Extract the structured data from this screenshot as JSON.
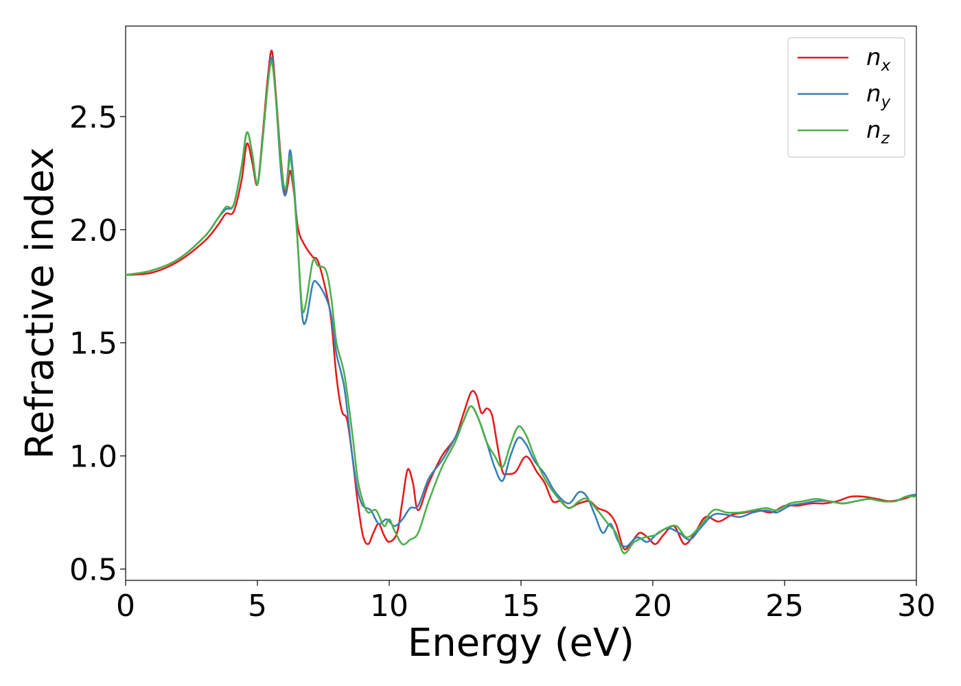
{
  "chart_data": {
    "type": "line",
    "xlabel": "Energy (eV)",
    "ylabel": "Refractive index",
    "xlim": [
      0,
      30
    ],
    "ylim": [
      0.45,
      2.9
    ],
    "xticks": [
      0,
      5,
      10,
      15,
      20,
      25,
      30
    ],
    "yticks": [
      0.5,
      1.0,
      1.5,
      2.0,
      2.5
    ],
    "xtick_labels": [
      "0",
      "5",
      "10",
      "15",
      "20",
      "25",
      "30"
    ],
    "ytick_labels": [
      "0.5",
      "1.0",
      "1.5",
      "2.0",
      "2.5"
    ],
    "grid": false,
    "legend_position": "top-right",
    "series": [
      {
        "name": "n_x",
        "legend_base": "n",
        "legend_sub": "x",
        "color": "#e41a1c",
        "points": [
          [
            0,
            1.8
          ],
          [
            1,
            1.81
          ],
          [
            2,
            1.86
          ],
          [
            3,
            1.95
          ],
          [
            3.5,
            2.02
          ],
          [
            3.8,
            2.07
          ],
          [
            4.1,
            2.08
          ],
          [
            4.4,
            2.22
          ],
          [
            4.6,
            2.38
          ],
          [
            4.8,
            2.3
          ],
          [
            5.0,
            2.2
          ],
          [
            5.2,
            2.42
          ],
          [
            5.4,
            2.68
          ],
          [
            5.55,
            2.79
          ],
          [
            5.7,
            2.6
          ],
          [
            5.9,
            2.3
          ],
          [
            6.05,
            2.16
          ],
          [
            6.15,
            2.2
          ],
          [
            6.25,
            2.26
          ],
          [
            6.4,
            2.15
          ],
          [
            6.55,
            2.0
          ],
          [
            6.8,
            1.93
          ],
          [
            7.1,
            1.88
          ],
          [
            7.3,
            1.86
          ],
          [
            7.6,
            1.73
          ],
          [
            7.8,
            1.6
          ],
          [
            8.0,
            1.35
          ],
          [
            8.2,
            1.2
          ],
          [
            8.4,
            1.16
          ],
          [
            8.6,
            1.0
          ],
          [
            8.8,
            0.8
          ],
          [
            9.0,
            0.65
          ],
          [
            9.2,
            0.61
          ],
          [
            9.4,
            0.66
          ],
          [
            9.6,
            0.7
          ],
          [
            9.8,
            0.65
          ],
          [
            10.0,
            0.62
          ],
          [
            10.3,
            0.66
          ],
          [
            10.5,
            0.8
          ],
          [
            10.7,
            0.94
          ],
          [
            10.9,
            0.88
          ],
          [
            11.1,
            0.76
          ],
          [
            11.5,
            0.88
          ],
          [
            12.0,
            1.0
          ],
          [
            12.5,
            1.08
          ],
          [
            12.8,
            1.18
          ],
          [
            13.1,
            1.28
          ],
          [
            13.3,
            1.27
          ],
          [
            13.5,
            1.19
          ],
          [
            13.7,
            1.21
          ],
          [
            13.9,
            1.18
          ],
          [
            14.1,
            1.05
          ],
          [
            14.3,
            0.93
          ],
          [
            14.5,
            0.92
          ],
          [
            14.8,
            0.93
          ],
          [
            15.1,
            0.99
          ],
          [
            15.3,
            0.99
          ],
          [
            15.6,
            0.93
          ],
          [
            15.9,
            0.88
          ],
          [
            16.2,
            0.8
          ],
          [
            16.5,
            0.8
          ],
          [
            16.8,
            0.77
          ],
          [
            17.2,
            0.79
          ],
          [
            17.6,
            0.8
          ],
          [
            17.9,
            0.77
          ],
          [
            18.3,
            0.75
          ],
          [
            18.6,
            0.7
          ],
          [
            18.9,
            0.59
          ],
          [
            19.2,
            0.62
          ],
          [
            19.5,
            0.66
          ],
          [
            19.8,
            0.64
          ],
          [
            20.1,
            0.61
          ],
          [
            20.4,
            0.65
          ],
          [
            20.8,
            0.69
          ],
          [
            21.2,
            0.61
          ],
          [
            21.6,
            0.66
          ],
          [
            22.0,
            0.73
          ],
          [
            22.5,
            0.71
          ],
          [
            23.0,
            0.74
          ],
          [
            23.5,
            0.75
          ],
          [
            24.0,
            0.76
          ],
          [
            24.5,
            0.75
          ],
          [
            25.0,
            0.78
          ],
          [
            25.5,
            0.78
          ],
          [
            26.0,
            0.79
          ],
          [
            26.5,
            0.79
          ],
          [
            27.0,
            0.8
          ],
          [
            27.5,
            0.82
          ],
          [
            28.0,
            0.82
          ],
          [
            28.5,
            0.81
          ],
          [
            29.0,
            0.8
          ],
          [
            29.5,
            0.81
          ],
          [
            30,
            0.83
          ]
        ]
      },
      {
        "name": "n_y",
        "legend_base": "n",
        "legend_sub": "y",
        "color": "#377eb8",
        "points": [
          [
            0,
            1.8
          ],
          [
            1,
            1.82
          ],
          [
            2,
            1.87
          ],
          [
            3,
            1.97
          ],
          [
            3.5,
            2.05
          ],
          [
            3.8,
            2.09
          ],
          [
            4.1,
            2.11
          ],
          [
            4.4,
            2.28
          ],
          [
            4.6,
            2.43
          ],
          [
            4.8,
            2.34
          ],
          [
            5.0,
            2.2
          ],
          [
            5.2,
            2.4
          ],
          [
            5.4,
            2.65
          ],
          [
            5.55,
            2.76
          ],
          [
            5.7,
            2.58
          ],
          [
            5.9,
            2.25
          ],
          [
            6.05,
            2.15
          ],
          [
            6.15,
            2.25
          ],
          [
            6.25,
            2.35
          ],
          [
            6.4,
            2.18
          ],
          [
            6.55,
            1.9
          ],
          [
            6.7,
            1.62
          ],
          [
            6.85,
            1.6
          ],
          [
            7.1,
            1.76
          ],
          [
            7.3,
            1.76
          ],
          [
            7.6,
            1.7
          ],
          [
            7.8,
            1.62
          ],
          [
            8.0,
            1.45
          ],
          [
            8.3,
            1.3
          ],
          [
            8.6,
            1.0
          ],
          [
            8.8,
            0.85
          ],
          [
            9.0,
            0.78
          ],
          [
            9.3,
            0.76
          ],
          [
            9.6,
            0.7
          ],
          [
            9.9,
            0.72
          ],
          [
            10.2,
            0.69
          ],
          [
            10.5,
            0.72
          ],
          [
            10.8,
            0.77
          ],
          [
            11.1,
            0.78
          ],
          [
            11.5,
            0.9
          ],
          [
            12.0,
            0.98
          ],
          [
            12.5,
            1.08
          ],
          [
            12.8,
            1.15
          ],
          [
            13.1,
            1.22
          ],
          [
            13.4,
            1.16
          ],
          [
            13.7,
            1.06
          ],
          [
            14.0,
            0.95
          ],
          [
            14.3,
            0.89
          ],
          [
            14.6,
            1.0
          ],
          [
            14.9,
            1.08
          ],
          [
            15.2,
            1.05
          ],
          [
            15.5,
            0.98
          ],
          [
            15.9,
            0.92
          ],
          [
            16.3,
            0.84
          ],
          [
            16.8,
            0.79
          ],
          [
            17.2,
            0.84
          ],
          [
            17.5,
            0.82
          ],
          [
            17.8,
            0.74
          ],
          [
            18.1,
            0.66
          ],
          [
            18.4,
            0.7
          ],
          [
            18.7,
            0.62
          ],
          [
            19.0,
            0.6
          ],
          [
            19.4,
            0.64
          ],
          [
            19.8,
            0.62
          ],
          [
            20.2,
            0.66
          ],
          [
            20.6,
            0.68
          ],
          [
            21.0,
            0.66
          ],
          [
            21.4,
            0.63
          ],
          [
            21.8,
            0.68
          ],
          [
            22.3,
            0.74
          ],
          [
            22.8,
            0.74
          ],
          [
            23.3,
            0.73
          ],
          [
            23.8,
            0.75
          ],
          [
            24.3,
            0.76
          ],
          [
            24.7,
            0.75
          ],
          [
            25.2,
            0.78
          ],
          [
            25.7,
            0.79
          ],
          [
            26.2,
            0.8
          ],
          [
            26.7,
            0.8
          ],
          [
            27.2,
            0.79
          ],
          [
            27.7,
            0.8
          ],
          [
            28.2,
            0.81
          ],
          [
            28.7,
            0.8
          ],
          [
            29.2,
            0.8
          ],
          [
            29.6,
            0.82
          ],
          [
            30,
            0.83
          ]
        ]
      },
      {
        "name": "n_z",
        "legend_base": "n",
        "legend_sub": "z",
        "color": "#4daf4a",
        "points": [
          [
            0,
            1.8
          ],
          [
            1,
            1.82
          ],
          [
            2,
            1.87
          ],
          [
            3,
            1.97
          ],
          [
            3.5,
            2.05
          ],
          [
            3.8,
            2.1
          ],
          [
            4.1,
            2.11
          ],
          [
            4.4,
            2.28
          ],
          [
            4.6,
            2.43
          ],
          [
            4.8,
            2.34
          ],
          [
            5.0,
            2.2
          ],
          [
            5.2,
            2.4
          ],
          [
            5.4,
            2.65
          ],
          [
            5.55,
            2.74
          ],
          [
            5.7,
            2.58
          ],
          [
            5.9,
            2.28
          ],
          [
            6.05,
            2.18
          ],
          [
            6.15,
            2.24
          ],
          [
            6.25,
            2.32
          ],
          [
            6.4,
            2.15
          ],
          [
            6.55,
            1.9
          ],
          [
            6.7,
            1.65
          ],
          [
            6.85,
            1.68
          ],
          [
            7.1,
            1.86
          ],
          [
            7.3,
            1.84
          ],
          [
            7.6,
            1.82
          ],
          [
            7.8,
            1.7
          ],
          [
            8.0,
            1.5
          ],
          [
            8.3,
            1.36
          ],
          [
            8.6,
            1.1
          ],
          [
            8.8,
            0.9
          ],
          [
            9.0,
            0.8
          ],
          [
            9.2,
            0.75
          ],
          [
            9.5,
            0.76
          ],
          [
            9.8,
            0.69
          ],
          [
            10.0,
            0.72
          ],
          [
            10.2,
            0.67
          ],
          [
            10.5,
            0.61
          ],
          [
            10.8,
            0.63
          ],
          [
            11.1,
            0.66
          ],
          [
            11.5,
            0.8
          ],
          [
            12.0,
            0.95
          ],
          [
            12.5,
            1.06
          ],
          [
            12.8,
            1.15
          ],
          [
            13.1,
            1.22
          ],
          [
            13.4,
            1.16
          ],
          [
            13.7,
            1.06
          ],
          [
            14.0,
            1.0
          ],
          [
            14.3,
            0.95
          ],
          [
            14.6,
            1.05
          ],
          [
            14.9,
            1.13
          ],
          [
            15.2,
            1.09
          ],
          [
            15.5,
            1.0
          ],
          [
            15.9,
            0.9
          ],
          [
            16.3,
            0.83
          ],
          [
            16.8,
            0.77
          ],
          [
            17.2,
            0.8
          ],
          [
            17.5,
            0.81
          ],
          [
            17.9,
            0.76
          ],
          [
            18.3,
            0.7
          ],
          [
            18.6,
            0.66
          ],
          [
            18.9,
            0.57
          ],
          [
            19.3,
            0.62
          ],
          [
            19.7,
            0.64
          ],
          [
            20.1,
            0.65
          ],
          [
            20.5,
            0.68
          ],
          [
            20.9,
            0.69
          ],
          [
            21.3,
            0.64
          ],
          [
            21.8,
            0.69
          ],
          [
            22.3,
            0.76
          ],
          [
            22.8,
            0.75
          ],
          [
            23.3,
            0.75
          ],
          [
            23.8,
            0.76
          ],
          [
            24.3,
            0.77
          ],
          [
            24.7,
            0.76
          ],
          [
            25.2,
            0.79
          ],
          [
            25.7,
            0.8
          ],
          [
            26.2,
            0.81
          ],
          [
            26.7,
            0.8
          ],
          [
            27.2,
            0.79
          ],
          [
            27.7,
            0.8
          ],
          [
            28.2,
            0.81
          ],
          [
            28.7,
            0.8
          ],
          [
            29.2,
            0.8
          ],
          [
            29.6,
            0.82
          ],
          [
            30,
            0.82
          ]
        ]
      }
    ]
  }
}
